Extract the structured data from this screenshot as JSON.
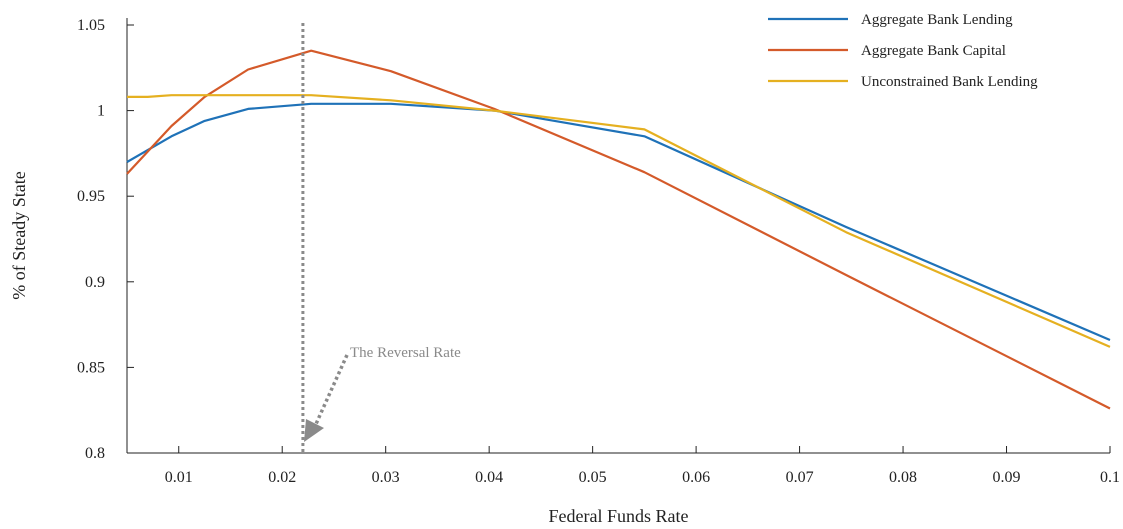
{
  "chart_data": {
    "type": "line",
    "xlabel": "Federal Funds Rate",
    "ylabel": "% of Steady State",
    "xlim": [
      0.005,
      0.1
    ],
    "ylim": [
      0.8,
      1.06
    ],
    "xticks": [
      0.01,
      0.02,
      0.03,
      0.04,
      0.05,
      0.06,
      0.07,
      0.08,
      0.09,
      0.1
    ],
    "xtick_labels": [
      "0.01",
      "0.02",
      "0.03",
      "0.04",
      "0.05",
      "0.06",
      "0.07",
      "0.08",
      "0.09",
      "0.1"
    ],
    "yticks": [
      0.8,
      0.85,
      0.9,
      0.95,
      1.0,
      1.05
    ],
    "ytick_labels": [
      "0.8",
      "0.85",
      "0.9",
      "0.95",
      "1",
      "1.05"
    ],
    "grid": false,
    "legend_position": "top-right",
    "series": [
      {
        "name": "Aggregate Bank Lending",
        "color": "#1f72b8",
        "x": [
          0.005,
          0.0093,
          0.0125,
          0.0167,
          0.0228,
          0.0305,
          0.0405,
          0.055,
          0.0745,
          0.1
        ],
        "y": [
          0.97,
          0.985,
          0.994,
          1.001,
          1.004,
          1.004,
          1.0,
          0.985,
          0.932,
          0.866
        ]
      },
      {
        "name": "Aggregate Bank Capital",
        "color": "#d45a2a",
        "x": [
          0.005,
          0.0093,
          0.0125,
          0.0167,
          0.0228,
          0.0305,
          0.0405,
          0.055,
          0.0745,
          0.1
        ],
        "y": [
          0.963,
          0.991,
          1.008,
          1.024,
          1.035,
          1.023,
          1.001,
          0.964,
          0.904,
          0.826
        ]
      },
      {
        "name": "Unconstrained Bank Lending",
        "color": "#e5b020",
        "x": [
          0.005,
          0.007,
          0.0093,
          0.0125,
          0.0167,
          0.0228,
          0.0305,
          0.0405,
          0.055,
          0.0745,
          0.1
        ],
        "y": [
          1.008,
          1.008,
          1.009,
          1.009,
          1.009,
          1.009,
          1.006,
          1.0,
          0.989,
          0.929,
          0.862
        ]
      }
    ],
    "annotations": [
      {
        "text": "The Reversal Rate",
        "x_value": 0.022,
        "style": "dotted-vertical-line",
        "color": "#8a8a8a"
      }
    ]
  }
}
